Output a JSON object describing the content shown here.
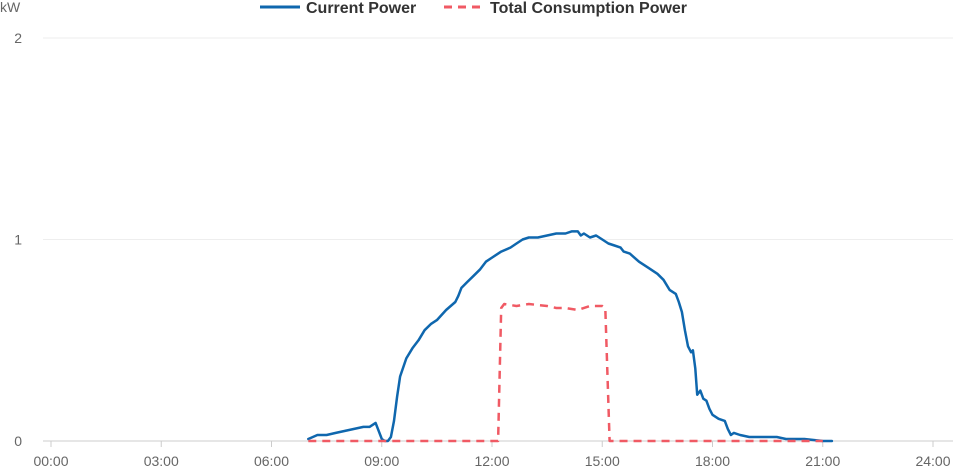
{
  "chart_data": {
    "type": "line",
    "ylabel": "kW",
    "ylim": [
      0,
      2
    ],
    "xlim": [
      "00:00",
      "24:00"
    ],
    "grid": true,
    "legend_position": "top-center",
    "y_ticks": [
      "0",
      "1",
      "2"
    ],
    "x_ticks": [
      "00:00",
      "03:00",
      "06:00",
      "09:00",
      "12:00",
      "15:00",
      "18:00",
      "21:00",
      "24:00"
    ],
    "series": [
      {
        "name": "Current Power",
        "style": "solid",
        "color": "#0f67ae",
        "points": [
          [
            "07:00",
            0.01
          ],
          [
            "07:15",
            0.03
          ],
          [
            "07:30",
            0.03
          ],
          [
            "07:45",
            0.04
          ],
          [
            "08:00",
            0.05
          ],
          [
            "08:15",
            0.06
          ],
          [
            "08:30",
            0.07
          ],
          [
            "08:40",
            0.07
          ],
          [
            "08:50",
            0.09
          ],
          [
            "08:55",
            0.05
          ],
          [
            "09:00",
            0.01
          ],
          [
            "09:05",
            0.0
          ],
          [
            "09:10",
            0.0
          ],
          [
            "09:15",
            0.02
          ],
          [
            "09:20",
            0.1
          ],
          [
            "09:25",
            0.22
          ],
          [
            "09:30",
            0.32
          ],
          [
            "09:40",
            0.41
          ],
          [
            "09:50",
            0.46
          ],
          [
            "10:00",
            0.5
          ],
          [
            "10:10",
            0.55
          ],
          [
            "10:20",
            0.58
          ],
          [
            "10:30",
            0.6
          ],
          [
            "10:45",
            0.65
          ],
          [
            "11:00",
            0.69
          ],
          [
            "11:05",
            0.72
          ],
          [
            "11:10",
            0.76
          ],
          [
            "11:20",
            0.79
          ],
          [
            "11:30",
            0.82
          ],
          [
            "11:40",
            0.85
          ],
          [
            "11:50",
            0.89
          ],
          [
            "12:00",
            0.91
          ],
          [
            "12:15",
            0.94
          ],
          [
            "12:30",
            0.96
          ],
          [
            "12:40",
            0.98
          ],
          [
            "12:50",
            1.0
          ],
          [
            "13:00",
            1.01
          ],
          [
            "13:15",
            1.01
          ],
          [
            "13:30",
            1.02
          ],
          [
            "13:45",
            1.03
          ],
          [
            "14:00",
            1.03
          ],
          [
            "14:10",
            1.04
          ],
          [
            "14:20",
            1.04
          ],
          [
            "14:25",
            1.02
          ],
          [
            "14:30",
            1.03
          ],
          [
            "14:40",
            1.01
          ],
          [
            "14:50",
            1.02
          ],
          [
            "15:00",
            1.0
          ],
          [
            "15:10",
            0.98
          ],
          [
            "15:20",
            0.97
          ],
          [
            "15:30",
            0.96
          ],
          [
            "15:35",
            0.94
          ],
          [
            "15:45",
            0.93
          ],
          [
            "16:00",
            0.89
          ],
          [
            "16:15",
            0.86
          ],
          [
            "16:30",
            0.83
          ],
          [
            "16:40",
            0.8
          ],
          [
            "16:50",
            0.75
          ],
          [
            "17:00",
            0.73
          ],
          [
            "17:05",
            0.69
          ],
          [
            "17:10",
            0.64
          ],
          [
            "17:15",
            0.55
          ],
          [
            "17:20",
            0.47
          ],
          [
            "17:25",
            0.44
          ],
          [
            "17:28",
            0.45
          ],
          [
            "17:32",
            0.36
          ],
          [
            "17:35",
            0.23
          ],
          [
            "17:40",
            0.25
          ],
          [
            "17:45",
            0.21
          ],
          [
            "17:50",
            0.2
          ],
          [
            "17:55",
            0.16
          ],
          [
            "18:00",
            0.13
          ],
          [
            "18:10",
            0.11
          ],
          [
            "18:20",
            0.1
          ],
          [
            "18:25",
            0.06
          ],
          [
            "18:30",
            0.03
          ],
          [
            "18:35",
            0.04
          ],
          [
            "18:45",
            0.03
          ],
          [
            "19:00",
            0.02
          ],
          [
            "19:15",
            0.02
          ],
          [
            "19:30",
            0.02
          ],
          [
            "19:45",
            0.02
          ],
          [
            "20:00",
            0.01
          ],
          [
            "20:30",
            0.01
          ],
          [
            "21:00",
            0.0
          ],
          [
            "21:15",
            0.0
          ]
        ]
      },
      {
        "name": "Total Consumption Power",
        "style": "dashed",
        "color": "#f05a64",
        "points": [
          [
            "07:00",
            0.0
          ],
          [
            "08:00",
            0.0
          ],
          [
            "09:00",
            0.0
          ],
          [
            "10:00",
            0.0
          ],
          [
            "11:00",
            0.0
          ],
          [
            "12:10",
            0.0
          ],
          [
            "12:15",
            0.66
          ],
          [
            "12:20",
            0.68
          ],
          [
            "12:40",
            0.67
          ],
          [
            "13:00",
            0.68
          ],
          [
            "13:30",
            0.67
          ],
          [
            "13:45",
            0.66
          ],
          [
            "14:00",
            0.66
          ],
          [
            "14:20",
            0.65
          ],
          [
            "14:40",
            0.67
          ],
          [
            "15:00",
            0.67
          ],
          [
            "15:05",
            0.66
          ],
          [
            "15:12",
            0.0
          ],
          [
            "16:00",
            0.0
          ],
          [
            "17:00",
            0.0
          ],
          [
            "18:00",
            0.0
          ],
          [
            "19:00",
            0.0
          ],
          [
            "20:00",
            0.0
          ],
          [
            "21:00",
            0.0
          ]
        ]
      }
    ]
  }
}
